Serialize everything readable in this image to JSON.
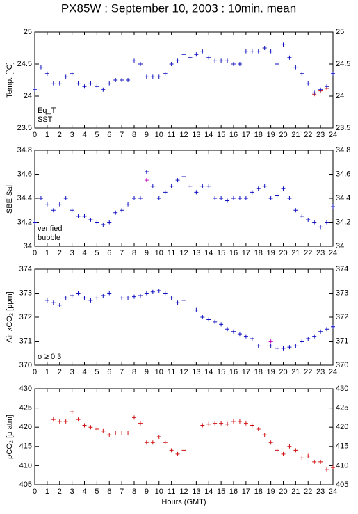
{
  "title": "PX85W : September 10, 2003 : 10min. mean",
  "chart_data": [
    {
      "type": "scatter",
      "ylabel": "Temp. [°C]",
      "xlim": [
        0,
        24
      ],
      "xticks": [
        0,
        1,
        2,
        3,
        4,
        5,
        6,
        7,
        8,
        9,
        10,
        11,
        12,
        13,
        14,
        15,
        16,
        17,
        18,
        19,
        20,
        21,
        22,
        23,
        24
      ],
      "ylim": [
        23.5,
        25
      ],
      "yticks": [
        23.5,
        24,
        24.5,
        25
      ],
      "x": [
        0,
        0.5,
        1,
        1.5,
        2,
        2.5,
        3,
        3.5,
        4,
        4.5,
        5,
        5.5,
        6,
        6.5,
        7,
        7.5,
        8,
        8.5,
        9,
        9.5,
        10,
        10.5,
        11,
        11.5,
        12,
        12.5,
        13,
        13.5,
        14,
        14.5,
        15,
        15.5,
        16,
        16.5,
        17,
        17.5,
        18,
        18.5,
        19,
        19.5,
        20,
        20.5,
        21,
        21.5,
        22,
        22.5,
        23,
        23.5,
        24
      ],
      "series": [
        {
          "name": "Eq_T",
          "color": "#d01010",
          "values": [
            null,
            null,
            null,
            null,
            null,
            null,
            null,
            null,
            null,
            null,
            null,
            null,
            null,
            null,
            null,
            null,
            null,
            null,
            null,
            null,
            null,
            null,
            null,
            null,
            null,
            null,
            null,
            null,
            null,
            null,
            null,
            null,
            null,
            null,
            null,
            null,
            null,
            null,
            null,
            null,
            null,
            null,
            null,
            null,
            null,
            24.03,
            24.08,
            24.12,
            null
          ]
        },
        {
          "name": "SST",
          "color": "#1010c0",
          "values": [
            24.1,
            24.45,
            24.35,
            24.2,
            24.2,
            24.3,
            24.35,
            24.2,
            24.15,
            24.2,
            24.15,
            24.1,
            24.2,
            24.25,
            24.25,
            24.25,
            24.55,
            24.5,
            24.3,
            24.3,
            24.3,
            24.35,
            24.5,
            24.55,
            24.65,
            24.6,
            24.65,
            24.7,
            24.6,
            24.55,
            24.55,
            24.55,
            24.5,
            24.5,
            24.7,
            24.7,
            24.7,
            24.75,
            24.7,
            24.5,
            24.8,
            24.6,
            24.45,
            24.35,
            24.2,
            24.05,
            24.1,
            24.15,
            24.35
          ]
        }
      ]
    },
    {
      "type": "scatter",
      "ylabel": "SBE Sal.",
      "xlim": [
        0,
        24
      ],
      "xticks": [
        0,
        1,
        2,
        3,
        4,
        5,
        6,
        7,
        8,
        9,
        10,
        11,
        12,
        13,
        14,
        15,
        16,
        17,
        18,
        19,
        20,
        21,
        22,
        23,
        24
      ],
      "ylim": [
        34,
        34.8
      ],
      "yticks": [
        34,
        34.2,
        34.4,
        34.6,
        34.8
      ],
      "x": [
        0,
        0.5,
        1,
        1.5,
        2,
        2.5,
        3,
        3.5,
        4,
        4.5,
        5,
        5.5,
        6,
        6.5,
        7,
        7.5,
        8,
        8.5,
        9,
        9.5,
        10,
        10.5,
        11,
        11.5,
        12,
        12.5,
        13,
        13.5,
        14,
        14.5,
        15,
        15.5,
        16,
        16.5,
        17,
        17.5,
        18,
        18.5,
        19,
        19.5,
        20,
        20.5,
        21,
        21.5,
        22,
        22.5,
        23,
        23.5,
        24
      ],
      "series": [
        {
          "name": "verified",
          "color": "#1010c0",
          "values": [
            34.2,
            34.4,
            34.35,
            34.3,
            34.35,
            34.4,
            34.3,
            34.25,
            34.25,
            34.22,
            34.2,
            34.18,
            34.2,
            34.28,
            34.3,
            34.35,
            34.4,
            34.4,
            34.62,
            34.5,
            34.4,
            34.45,
            34.5,
            34.55,
            34.58,
            34.5,
            34.45,
            34.5,
            34.5,
            34.4,
            34.4,
            34.38,
            34.4,
            34.4,
            34.4,
            34.45,
            34.48,
            34.5,
            34.4,
            34.42,
            34.48,
            34.4,
            34.3,
            34.25,
            34.22,
            34.2,
            34.16,
            34.2,
            34.33
          ]
        },
        {
          "name": "bubble",
          "color": "#c010c0",
          "values": [
            null,
            null,
            null,
            null,
            null,
            null,
            null,
            null,
            null,
            null,
            null,
            null,
            null,
            null,
            null,
            null,
            null,
            null,
            34.55,
            null,
            null,
            null,
            null,
            null,
            null,
            null,
            null,
            null,
            null,
            null,
            null,
            null,
            null,
            null,
            null,
            null,
            null,
            null,
            null,
            null,
            null,
            null,
            null,
            null,
            null,
            null,
            null,
            null,
            null
          ]
        }
      ]
    },
    {
      "type": "scatter",
      "ylabel": "Air xCO₂ [ppm]",
      "xlim": [
        0,
        24
      ],
      "xticks": [
        0,
        1,
        2,
        3,
        4,
        5,
        6,
        7,
        8,
        9,
        10,
        11,
        12,
        13,
        14,
        15,
        16,
        17,
        18,
        19,
        20,
        21,
        22,
        23,
        24
      ],
      "ylim": [
        370,
        374
      ],
      "yticks": [
        370,
        371,
        372,
        373,
        374
      ],
      "x": [
        0,
        0.5,
        1,
        1.5,
        2,
        2.5,
        3,
        3.5,
        4,
        4.5,
        5,
        5.5,
        6,
        6.5,
        7,
        7.5,
        8,
        8.5,
        9,
        9.5,
        10,
        10.5,
        11,
        11.5,
        12,
        12.5,
        13,
        13.5,
        14,
        14.5,
        15,
        15.5,
        16,
        16.5,
        17,
        17.5,
        18,
        18.5,
        19,
        19.5,
        20,
        20.5,
        21,
        21.5,
        22,
        22.5,
        23,
        23.5,
        24
      ],
      "series": [
        {
          "color": "#1010c0",
          "values": [
            null,
            null,
            372.7,
            372.6,
            372.5,
            372.8,
            372.9,
            373,
            372.8,
            372.7,
            372.8,
            372.9,
            373,
            null,
            372.8,
            372.8,
            372.85,
            372.9,
            373,
            373.05,
            373.1,
            373,
            372.8,
            372.6,
            372.7,
            null,
            372.3,
            372,
            371.9,
            371.8,
            371.7,
            371.5,
            371.4,
            371.3,
            371.2,
            371.1,
            370.8,
            null,
            370.8,
            370.7,
            370.7,
            370.75,
            370.8,
            371,
            371.1,
            371.2,
            371.4,
            371.5,
            371.6
          ]
        },
        {
          "name": "σ ≥ 0.3",
          "color": "#c010c0",
          "values": [
            null,
            null,
            null,
            null,
            null,
            null,
            null,
            null,
            null,
            null,
            null,
            null,
            null,
            null,
            null,
            null,
            null,
            null,
            null,
            null,
            null,
            null,
            null,
            null,
            null,
            null,
            null,
            null,
            null,
            null,
            null,
            null,
            null,
            null,
            null,
            null,
            null,
            null,
            371,
            null,
            null,
            null,
            null,
            null,
            null,
            null,
            null,
            null,
            null
          ]
        }
      ]
    },
    {
      "type": "scatter",
      "ylabel": "ρCO₂ [μ atm]",
      "xlabel": "Hours (GMT)",
      "xlim": [
        0,
        24
      ],
      "xticks": [
        0,
        1,
        2,
        3,
        4,
        5,
        6,
        7,
        8,
        9,
        10,
        11,
        12,
        13,
        14,
        15,
        16,
        17,
        18,
        19,
        20,
        21,
        22,
        23,
        24
      ],
      "ylim": [
        405,
        430
      ],
      "yticks": [
        405,
        410,
        415,
        420,
        425,
        430
      ],
      "x": [
        0,
        0.5,
        1,
        1.5,
        2,
        2.5,
        3,
        3.5,
        4,
        4.5,
        5,
        5.5,
        6,
        6.5,
        7,
        7.5,
        8,
        8.5,
        9,
        9.5,
        10,
        10.5,
        11,
        11.5,
        12,
        12.5,
        13,
        13.5,
        14,
        14.5,
        15,
        15.5,
        16,
        16.5,
        17,
        17.5,
        18,
        18.5,
        19,
        19.5,
        20,
        20.5,
        21,
        21.5,
        22,
        22.5,
        23,
        23.5,
        24
      ],
      "series": [
        {
          "color": "#d01010",
          "values": [
            null,
            null,
            null,
            422,
            421.5,
            421.5,
            424,
            422,
            420.5,
            420,
            419.5,
            419,
            418,
            418.5,
            418.5,
            418.5,
            422.5,
            421,
            416,
            416,
            417.5,
            416,
            414,
            413,
            414,
            null,
            null,
            420.5,
            420.8,
            421,
            421,
            420.8,
            421.5,
            421.5,
            421,
            420.5,
            419.5,
            418,
            416,
            414,
            413,
            415,
            414,
            412,
            412.5,
            411,
            411,
            409,
            409.5
          ]
        }
      ]
    }
  ]
}
